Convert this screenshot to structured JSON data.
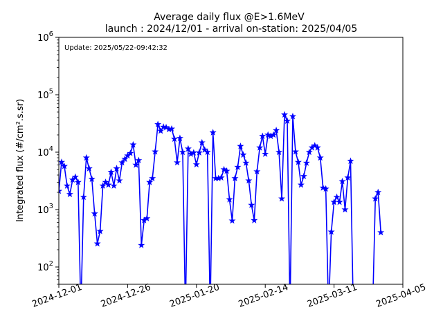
{
  "chart_data": {
    "type": "line",
    "title": "Average daily flux @E>1.6MeV",
    "subtitle": "launch : 2024/12/01 - arrival on-station: 2025/04/05",
    "ylabel": "Integrated flux (#/cm².s.sr)",
    "xlabel": "",
    "annotation": "Update: 2025/05/22-09:42:32",
    "x_range": [
      "2024-12-01",
      "2025-04-05"
    ],
    "x_ticks": [
      "2024-12-01",
      "2024-12-26",
      "2025-01-20",
      "2025-02-14",
      "2025-03-11",
      "2025-04-05"
    ],
    "y_scale": "log",
    "ylim": [
      50,
      1000000
    ],
    "y_ticks": [
      {
        "value": 100,
        "base": "10",
        "exp": "2"
      },
      {
        "value": 1000,
        "base": "10",
        "exp": "3"
      },
      {
        "value": 10000,
        "base": "10",
        "exp": "4"
      },
      {
        "value": 100000,
        "base": "10",
        "exp": "5"
      },
      {
        "value": 1000000,
        "base": "10",
        "exp": "6"
      }
    ],
    "grid": false,
    "legend": "none",
    "line_color": "#0000ff",
    "marker": "star",
    "series": [
      {
        "values": [
          [
            "2024-12-01",
            2100
          ],
          [
            "2024-12-02",
            6700
          ],
          [
            "2024-12-03",
            5700
          ],
          [
            "2024-12-04",
            2600
          ],
          [
            "2024-12-05",
            1850
          ],
          [
            "2024-12-06",
            3300
          ],
          [
            "2024-12-07",
            3700
          ],
          [
            "2024-12-08",
            3000
          ],
          [
            "2024-12-09",
            null
          ],
          [
            "2024-12-10",
            1650
          ],
          [
            "2024-12-11",
            8000
          ],
          [
            "2024-12-12",
            5200
          ],
          [
            "2024-12-13",
            3400
          ],
          [
            "2024-12-14",
            850
          ],
          [
            "2024-12-15",
            255
          ],
          [
            "2024-12-16",
            420
          ],
          [
            "2024-12-17",
            2600
          ],
          [
            "2024-12-18",
            3000
          ],
          [
            "2024-12-19",
            2700
          ],
          [
            "2024-12-20",
            4500
          ],
          [
            "2024-12-21",
            2600
          ],
          [
            "2024-12-22",
            5200
          ],
          [
            "2024-12-23",
            3200
          ],
          [
            "2024-12-24",
            6600
          ],
          [
            "2024-12-25",
            7600
          ],
          [
            "2024-12-26",
            8700
          ],
          [
            "2024-12-27",
            9600
          ],
          [
            "2024-12-28",
            13500
          ],
          [
            "2024-12-29",
            6000
          ],
          [
            "2024-12-30",
            7200
          ],
          [
            "2024-12-31",
            240
          ],
          [
            "2025-01-01",
            650
          ],
          [
            "2025-01-02",
            700
          ],
          [
            "2025-01-03",
            3000
          ],
          [
            "2025-01-04",
            3500
          ],
          [
            "2025-01-05",
            10200
          ],
          [
            "2025-01-06",
            30500
          ],
          [
            "2025-01-07",
            23500
          ],
          [
            "2025-01-08",
            27500
          ],
          [
            "2025-01-09",
            27000
          ],
          [
            "2025-01-10",
            25000
          ],
          [
            "2025-01-11",
            25500
          ],
          [
            "2025-01-12",
            17000
          ],
          [
            "2025-01-13",
            6600
          ],
          [
            "2025-01-14",
            17500
          ],
          [
            "2025-01-15",
            10000
          ],
          [
            "2025-01-16",
            null
          ],
          [
            "2025-01-17",
            11500
          ],
          [
            "2025-01-18",
            9300
          ],
          [
            "2025-01-19",
            9800
          ],
          [
            "2025-01-20",
            6100
          ],
          [
            "2025-01-21",
            9800
          ],
          [
            "2025-01-22",
            14700
          ],
          [
            "2025-01-23",
            11000
          ],
          [
            "2025-01-24",
            10000
          ],
          [
            "2025-01-25",
            null
          ],
          [
            "2025-01-26",
            22000
          ],
          [
            "2025-01-27",
            3500
          ],
          [
            "2025-01-28",
            3500
          ],
          [
            "2025-01-29",
            3600
          ],
          [
            "2025-01-30",
            5000
          ],
          [
            "2025-01-31",
            4700
          ],
          [
            "2025-02-01",
            1500
          ],
          [
            "2025-02-02",
            640
          ],
          [
            "2025-02-03",
            3500
          ],
          [
            "2025-02-04",
            5500
          ],
          [
            "2025-02-05",
            12700
          ],
          [
            "2025-02-06",
            9000
          ],
          [
            "2025-02-07",
            6500
          ],
          [
            "2025-02-08",
            3200
          ],
          [
            "2025-02-09",
            1200
          ],
          [
            "2025-02-10",
            650
          ],
          [
            "2025-02-11",
            4600
          ],
          [
            "2025-02-12",
            12000
          ],
          [
            "2025-02-13",
            19000
          ],
          [
            "2025-02-14",
            9300
          ],
          [
            "2025-02-15",
            20000
          ],
          [
            "2025-02-16",
            19000
          ],
          [
            "2025-02-17",
            20000
          ],
          [
            "2025-02-18",
            24000
          ],
          [
            "2025-02-19",
            10000
          ],
          [
            "2025-02-20",
            1550
          ],
          [
            "2025-02-21",
            45000
          ],
          [
            "2025-02-22",
            35000
          ],
          [
            "2025-02-23",
            null
          ],
          [
            "2025-02-24",
            42000
          ],
          [
            "2025-02-25",
            10200
          ],
          [
            "2025-02-26",
            6700
          ],
          [
            "2025-02-27",
            2700
          ],
          [
            "2025-02-28",
            3800
          ],
          [
            "2025-03-01",
            6500
          ],
          [
            "2025-03-02",
            10000
          ],
          [
            "2025-03-03",
            12000
          ],
          [
            "2025-03-04",
            13000
          ],
          [
            "2025-03-05",
            12000
          ],
          [
            "2025-03-06",
            8000
          ],
          [
            "2025-03-07",
            2400
          ],
          [
            "2025-03-08",
            2300
          ],
          [
            "2025-03-09",
            null
          ],
          [
            "2025-03-10",
            410
          ],
          [
            "2025-03-11",
            1350
          ],
          [
            "2025-03-12",
            1650
          ],
          [
            "2025-03-13",
            1350
          ],
          [
            "2025-03-14",
            3100
          ],
          [
            "2025-03-15",
            1000
          ],
          [
            "2025-03-16",
            3600
          ],
          [
            "2025-03-17",
            7000
          ],
          [
            "2025-03-18",
            null
          ],
          [
            "2025-03-25",
            null
          ],
          [
            "2025-03-26",
            1550
          ],
          [
            "2025-03-27",
            2000
          ],
          [
            "2025-03-28",
            400
          ]
        ]
      }
    ]
  }
}
